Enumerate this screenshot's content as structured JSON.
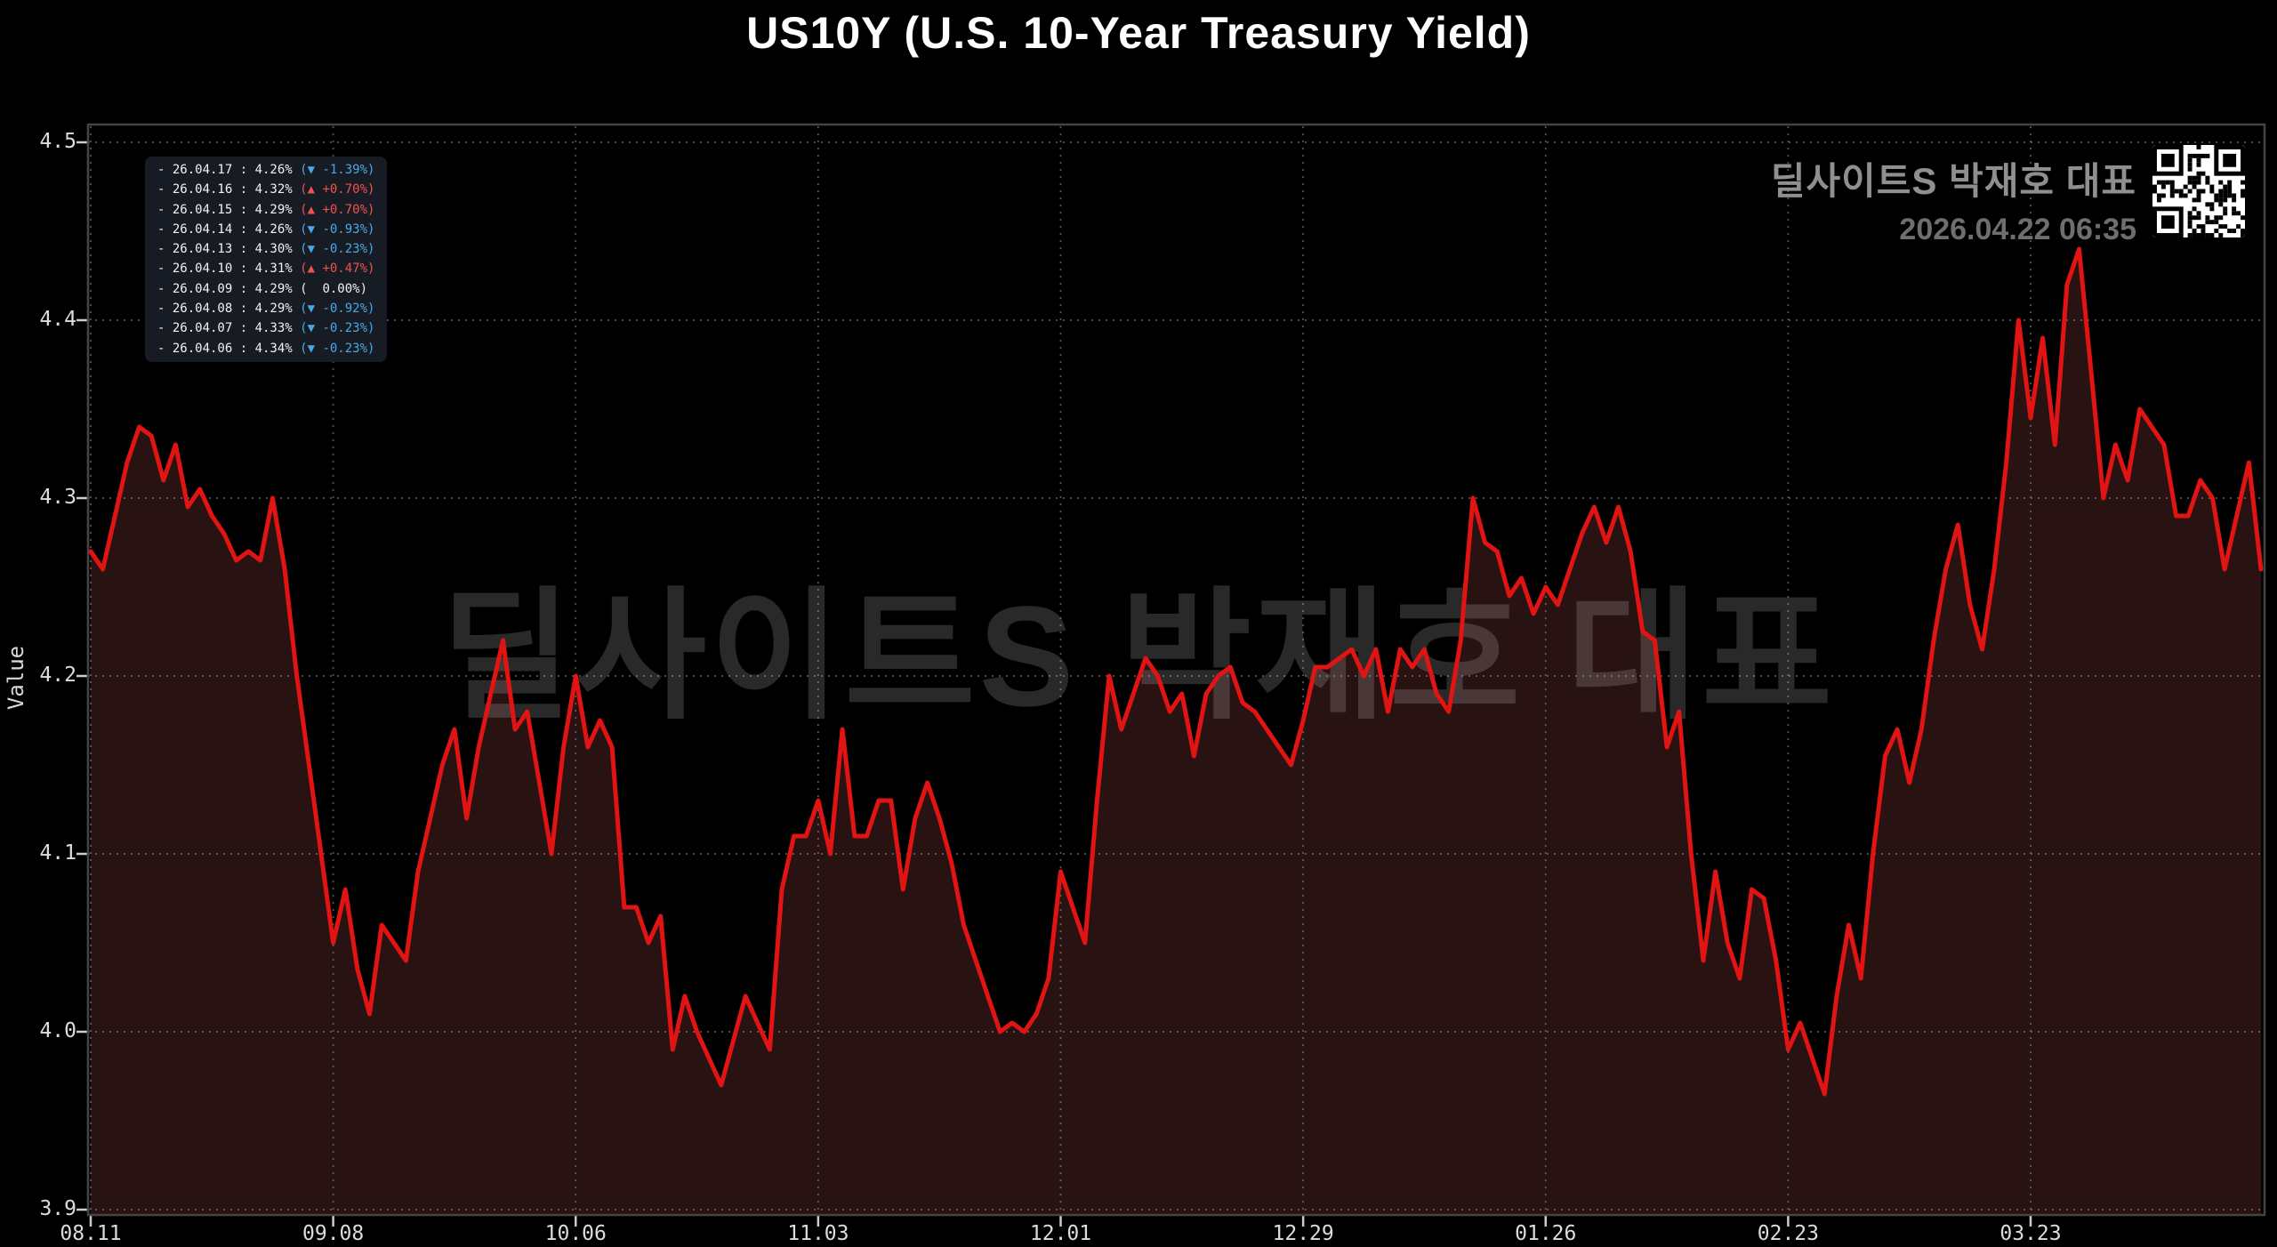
{
  "title": "US10Y (U.S. 10-Year Treasury Yield)",
  "watermark": "딜사이트S 박재호 대표",
  "brand": {
    "name": "딜사이트S 박재호 대표",
    "datetime": "2026.04.22 06:35"
  },
  "legend_rows": [
    {
      "date": "26.04.17",
      "value": "4.26%",
      "dir": "down",
      "arrow": "▼",
      "change": "-1.39%"
    },
    {
      "date": "26.04.16",
      "value": "4.32%",
      "dir": "up",
      "arrow": "▲",
      "change": "+0.70%"
    },
    {
      "date": "26.04.15",
      "value": "4.29%",
      "dir": "up",
      "arrow": "▲",
      "change": "+0.70%"
    },
    {
      "date": "26.04.14",
      "value": "4.26%",
      "dir": "down",
      "arrow": "▼",
      "change": "-0.93%"
    },
    {
      "date": "26.04.13",
      "value": "4.30%",
      "dir": "down",
      "arrow": "▼",
      "change": "-0.23%"
    },
    {
      "date": "26.04.10",
      "value": "4.31%",
      "dir": "up",
      "arrow": "▲",
      "change": "+0.47%"
    },
    {
      "date": "26.04.09",
      "value": "4.29%",
      "dir": "flat",
      "arrow": "",
      "change": "0.00%"
    },
    {
      "date": "26.04.08",
      "value": "4.29%",
      "dir": "down",
      "arrow": "▼",
      "change": "-0.92%"
    },
    {
      "date": "26.04.07",
      "value": "4.33%",
      "dir": "down",
      "arrow": "▼",
      "change": "-0.23%"
    },
    {
      "date": "26.04.06",
      "value": "4.34%",
      "dir": "down",
      "arrow": "▼",
      "change": "-0.23%"
    }
  ],
  "axes": {
    "ylabel": "Value",
    "y_ticks": [
      "4.5",
      "4.4",
      "4.3",
      "4.2",
      "4.1",
      "4.0",
      "3.9"
    ],
    "x_ticks": [
      {
        "label": "08.11",
        "index": 0
      },
      {
        "label": "09.08",
        "index": 20
      },
      {
        "label": "10.06",
        "index": 40
      },
      {
        "label": "11.03",
        "index": 60
      },
      {
        "label": "12.01",
        "index": 80
      },
      {
        "label": "12.29",
        "index": 100
      },
      {
        "label": "01.26",
        "index": 120
      },
      {
        "label": "02.23",
        "index": 140
      },
      {
        "label": "03.23",
        "index": 160
      }
    ]
  },
  "colors": {
    "line": "#e11414",
    "fill": "#281212",
    "grid": "#9a9a9a",
    "frame": "#444444",
    "legend_down": "#4aa8e8",
    "legend_up": "#ef5350",
    "background": "#000000"
  },
  "chart_data": {
    "type": "line",
    "title": "US10Y (U.S. 10-Year Treasury Yield)",
    "xlabel": "",
    "ylabel": "Value",
    "ylim": [
      3.9,
      4.5
    ],
    "grid": true,
    "legend_position": "top-left",
    "x": [
      "08.11",
      "08.12",
      "08.13",
      "08.14",
      "08.15",
      "08.18",
      "08.19",
      "08.20",
      "08.21",
      "08.22",
      "08.25",
      "08.26",
      "08.27",
      "08.28",
      "08.29",
      "09.01",
      "09.02",
      "09.03",
      "09.04",
      "09.05",
      "09.08",
      "09.09",
      "09.10",
      "09.11",
      "09.12",
      "09.15",
      "09.16",
      "09.17",
      "09.18",
      "09.19",
      "09.22",
      "09.23",
      "09.24",
      "09.25",
      "09.26",
      "09.29",
      "09.30",
      "10.01",
      "10.02",
      "10.03",
      "10.06",
      "10.07",
      "10.08",
      "10.09",
      "10.10",
      "10.13",
      "10.14",
      "10.15",
      "10.16",
      "10.17",
      "10.20",
      "10.21",
      "10.22",
      "10.23",
      "10.24",
      "10.27",
      "10.28",
      "10.29",
      "10.30",
      "10.31",
      "11.03",
      "11.04",
      "11.05",
      "11.06",
      "11.07",
      "11.10",
      "11.11",
      "11.12",
      "11.13",
      "11.14",
      "11.17",
      "11.18",
      "11.19",
      "11.20",
      "11.21",
      "11.24",
      "11.25",
      "11.26",
      "11.27",
      "11.28",
      "12.01",
      "12.02",
      "12.03",
      "12.04",
      "12.05",
      "12.08",
      "12.09",
      "12.10",
      "12.11",
      "12.12",
      "12.15",
      "12.16",
      "12.17",
      "12.18",
      "12.19",
      "12.22",
      "12.23",
      "12.24",
      "12.25",
      "12.26",
      "12.29",
      "12.30",
      "12.31",
      "01.01",
      "01.02",
      "01.05",
      "01.06",
      "01.07",
      "01.08",
      "01.09",
      "01.12",
      "01.13",
      "01.14",
      "01.15",
      "01.16",
      "01.19",
      "01.20",
      "01.21",
      "01.22",
      "01.23",
      "01.26",
      "01.27",
      "01.28",
      "01.29",
      "01.30",
      "02.02",
      "02.03",
      "02.04",
      "02.05",
      "02.06",
      "02.09",
      "02.10",
      "02.11",
      "02.12",
      "02.13",
      "02.16",
      "02.17",
      "02.18",
      "02.19",
      "02.20",
      "02.23",
      "02.24",
      "02.25",
      "02.26",
      "02.27",
      "03.02",
      "03.03",
      "03.04",
      "03.05",
      "03.06",
      "03.09",
      "03.10",
      "03.11",
      "03.12",
      "03.13",
      "03.16",
      "03.17",
      "03.18",
      "03.19",
      "03.20",
      "03.23",
      "03.24",
      "03.25",
      "03.26",
      "03.27",
      "03.30",
      "03.31",
      "04.01",
      "04.02",
      "04.03",
      "04.06",
      "04.07",
      "04.08",
      "04.09",
      "04.10",
      "04.13",
      "04.14",
      "04.15",
      "04.16",
      "04.17"
    ],
    "values": [
      4.27,
      4.26,
      4.29,
      4.32,
      4.34,
      4.335,
      4.31,
      4.33,
      4.295,
      4.305,
      4.29,
      4.28,
      4.265,
      4.27,
      4.265,
      4.3,
      4.26,
      4.2,
      4.15,
      4.1,
      4.05,
      4.08,
      4.035,
      4.01,
      4.06,
      4.05,
      4.04,
      4.09,
      4.12,
      4.15,
      4.17,
      4.12,
      4.16,
      4.19,
      4.22,
      4.17,
      4.18,
      4.14,
      4.1,
      4.16,
      4.2,
      4.16,
      4.175,
      4.16,
      4.07,
      4.07,
      4.05,
      4.065,
      3.99,
      4.02,
      4.0,
      3.985,
      3.97,
      3.995,
      4.02,
      4.005,
      3.99,
      4.08,
      4.11,
      4.11,
      4.13,
      4.1,
      4.17,
      4.11,
      4.11,
      4.13,
      4.13,
      4.08,
      4.12,
      4.14,
      4.12,
      4.095,
      4.06,
      4.04,
      4.02,
      4.0,
      4.005,
      4.0,
      4.01,
      4.03,
      4.09,
      4.07,
      4.05,
      4.13,
      4.2,
      4.17,
      4.19,
      4.21,
      4.2,
      4.18,
      4.19,
      4.155,
      4.19,
      4.2,
      4.205,
      4.185,
      4.18,
      4.17,
      4.16,
      4.15,
      4.175,
      4.205,
      4.205,
      4.21,
      4.215,
      4.2,
      4.215,
      4.18,
      4.215,
      4.205,
      4.215,
      4.19,
      4.18,
      4.22,
      4.3,
      4.275,
      4.27,
      4.245,
      4.255,
      4.235,
      4.25,
      4.24,
      4.26,
      4.28,
      4.295,
      4.275,
      4.295,
      4.27,
      4.225,
      4.22,
      4.16,
      4.18,
      4.1,
      4.04,
      4.09,
      4.05,
      4.03,
      4.08,
      4.075,
      4.04,
      3.99,
      4.005,
      3.985,
      3.965,
      4.02,
      4.06,
      4.03,
      4.1,
      4.155,
      4.17,
      4.14,
      4.17,
      4.22,
      4.26,
      4.285,
      4.24,
      4.215,
      4.26,
      4.32,
      4.4,
      4.345,
      4.39,
      4.33,
      4.42,
      4.44,
      4.37,
      4.3,
      4.33,
      4.31,
      4.35,
      4.34,
      4.33,
      4.29,
      4.29,
      4.31,
      4.3,
      4.26,
      4.29,
      4.32,
      4.26
    ]
  }
}
